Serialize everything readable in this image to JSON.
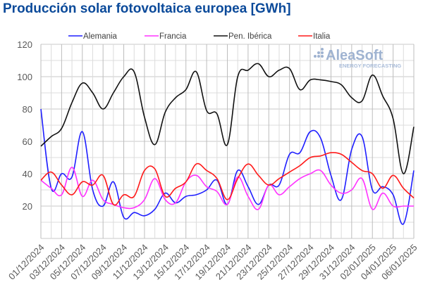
{
  "chart_data": {
    "type": "line",
    "title": "Producción solar fotovoltaica europea [GWh]",
    "xlabel": "",
    "ylabel": "",
    "ylim": [
      0,
      120
    ],
    "yticks": [
      20,
      40,
      60,
      80,
      100,
      120
    ],
    "grid": true,
    "legend_position": "top",
    "watermark": {
      "brand": "AleaSoft",
      "tagline": "ENERGY FORECASTING"
    },
    "x_labels": [
      "01/12/2024",
      "03/12/2024",
      "05/12/2024",
      "07/12/2024",
      "09/12/2024",
      "11/12/2024",
      "13/12/2024",
      "15/12/2024",
      "17/12/2024",
      "19/12/2024",
      "21/12/2024",
      "23/12/2024",
      "25/12/2024",
      "27/12/2024",
      "29/12/2024",
      "31/12/2024",
      "02/01/2025",
      "04/01/2025",
      "06/01/2025"
    ],
    "series": [
      {
        "name": "Alemania",
        "color": "#1f1fff",
        "values": [
          80,
          31,
          40,
          38,
          66,
          30,
          20,
          35,
          13,
          16,
          14,
          18,
          28,
          22,
          26,
          27,
          30,
          36,
          21,
          42,
          32,
          21,
          33,
          33,
          52,
          53,
          66,
          62,
          39,
          24,
          55,
          63,
          30,
          32,
          27,
          9,
          42
        ]
      },
      {
        "name": "Francia",
        "color": "#ff33ff",
        "values": [
          36,
          31,
          27,
          44,
          26,
          36,
          24,
          21,
          19,
          19,
          24,
          37,
          24,
          22,
          35,
          39,
          32,
          29,
          21,
          38,
          26,
          18,
          33,
          27,
          32,
          37,
          40,
          42,
          33,
          28,
          30,
          37,
          18,
          28,
          20,
          20,
          20
        ]
      },
      {
        "name": "Pen. Ibérica",
        "color": "#111111",
        "values": [
          57,
          63,
          68,
          84,
          96,
          90,
          80,
          90,
          100,
          103,
          75,
          58,
          78,
          87,
          92,
          103,
          79,
          77,
          58,
          100,
          104,
          108,
          100,
          104,
          105,
          92,
          98,
          98,
          97,
          95,
          87,
          85,
          101,
          88,
          74,
          40,
          69
        ]
      },
      {
        "name": "Italia",
        "color": "#ff1a1a",
        "values": [
          36,
          41,
          33,
          27,
          35,
          33,
          39,
          21,
          27,
          26,
          42,
          43,
          26,
          31,
          35,
          46,
          42,
          37,
          24,
          37,
          46,
          39,
          33,
          37,
          41,
          45,
          50,
          51,
          53,
          52,
          47,
          42,
          40,
          31,
          39,
          31,
          25
        ]
      }
    ]
  }
}
